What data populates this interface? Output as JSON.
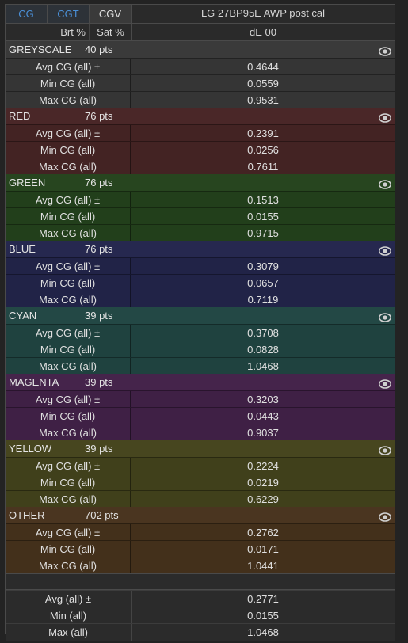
{
  "tabs": [
    "CG",
    "CGT",
    "CGV"
  ],
  "column_title": "LG 27BP95E AWP post cal",
  "subheader": {
    "brt": "Brt %",
    "sat": "Sat %",
    "metric": "dE 00"
  },
  "groups": [
    {
      "name": "GREYSCALE",
      "pts": "40 pts",
      "header_color": "#3a3a3a",
      "row_color": "#353535",
      "rows": [
        {
          "label": "Avg CG (all) ±",
          "value": "0.4644"
        },
        {
          "label": "Min CG (all)",
          "value": "0.0559"
        },
        {
          "label": "Max CG (all)",
          "value": "0.9531"
        }
      ]
    },
    {
      "name": "RED",
      "pts": "76 pts",
      "header_color": "#4a2728",
      "row_color": "#432323",
      "rows": [
        {
          "label": "Avg CG (all) ±",
          "value": "0.2391"
        },
        {
          "label": "Min CG (all)",
          "value": "0.0256"
        },
        {
          "label": "Max CG (all)",
          "value": "0.7611"
        }
      ]
    },
    {
      "name": "GREEN",
      "pts": "76 pts",
      "header_color": "#27451f",
      "row_color": "#223f1b",
      "rows": [
        {
          "label": "Avg CG (all) ±",
          "value": "0.1513"
        },
        {
          "label": "Min CG (all)",
          "value": "0.0155"
        },
        {
          "label": "Max CG (all)",
          "value": "0.9715"
        }
      ]
    },
    {
      "name": "BLUE",
      "pts": "76 pts",
      "header_color": "#26284f",
      "row_color": "#212347",
      "rows": [
        {
          "label": "Avg CG (all) ±",
          "value": "0.3079"
        },
        {
          "label": "Min CG (all)",
          "value": "0.0657"
        },
        {
          "label": "Max CG (all)",
          "value": "0.7119"
        }
      ]
    },
    {
      "name": "CYAN",
      "pts": "39 pts",
      "header_color": "#234845",
      "row_color": "#1f423f",
      "rows": [
        {
          "label": "Avg CG (all) ±",
          "value": "0.3708"
        },
        {
          "label": "Min CG (all)",
          "value": "0.0828"
        },
        {
          "label": "Max CG (all)",
          "value": "1.0468"
        }
      ]
    },
    {
      "name": "MAGENTA",
      "pts": "39 pts",
      "header_color": "#45244b",
      "row_color": "#3f2045",
      "rows": [
        {
          "label": "Avg CG (all) ±",
          "value": "0.3203"
        },
        {
          "label": "Min CG (all)",
          "value": "0.0443"
        },
        {
          "label": "Max CG (all)",
          "value": "0.9037"
        }
      ]
    },
    {
      "name": "YELLOW",
      "pts": "39 pts",
      "header_color": "#47461f",
      "row_color": "#40401b",
      "rows": [
        {
          "label": "Avg CG (all) ±",
          "value": "0.2224"
        },
        {
          "label": "Min CG (all)",
          "value": "0.0219"
        },
        {
          "label": "Max CG (all)",
          "value": "0.6229"
        }
      ]
    },
    {
      "name": "OTHER",
      "pts": "702 pts",
      "header_color": "#4a3520",
      "row_color": "#43301b",
      "rows": [
        {
          "label": "Avg CG (all) ±",
          "value": "0.2762"
        },
        {
          "label": "Min CG (all)",
          "value": "0.0171"
        },
        {
          "label": "Max CG (all)",
          "value": "1.0441"
        }
      ]
    }
  ],
  "totals": [
    {
      "label": "Avg (all) ±",
      "value": "0.2771"
    },
    {
      "label": "Min (all)",
      "value": "0.0155"
    },
    {
      "label": "Max (all)",
      "value": "1.0468"
    }
  ],
  "icons": {
    "group_toggle": "eye-icon"
  }
}
